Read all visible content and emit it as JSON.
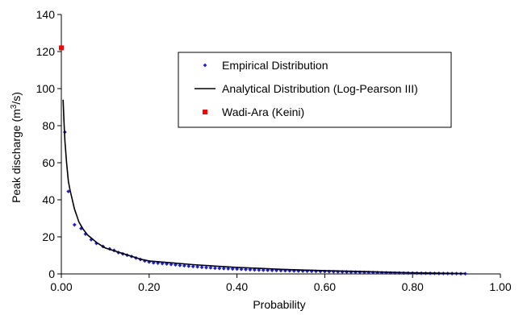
{
  "chart_data": {
    "type": "scatter",
    "xlabel": "Probability",
    "ylabel": {
      "prefix": "Peak discharge (m",
      "superscript": "3",
      "suffix": "/s)"
    },
    "xlim": [
      0,
      1
    ],
    "ylim": [
      0,
      140
    ],
    "x_ticks": [
      "0.00",
      "0.20",
      "0.40",
      "0.60",
      "0.80",
      "1.00"
    ],
    "y_ticks": [
      "0",
      "20",
      "40",
      "60",
      "80",
      "100",
      "120",
      "140"
    ],
    "grid": false,
    "legend_position": "top-right",
    "series": [
      {
        "name": "Empirical Distribution",
        "kind": "markers",
        "marker": "diamond",
        "color": "#1f1fd6",
        "points": [
          [
            0.008,
            76.5
          ],
          [
            0.016,
            44.5
          ],
          [
            0.03,
            26.5
          ],
          [
            0.045,
            24.5
          ],
          [
            0.055,
            21.5
          ],
          [
            0.068,
            18.5
          ],
          [
            0.08,
            16.5
          ],
          [
            0.095,
            14.8
          ],
          [
            0.11,
            13.5
          ],
          [
            0.12,
            12.7
          ],
          [
            0.13,
            11.5
          ],
          [
            0.14,
            10.8
          ],
          [
            0.15,
            10.1
          ],
          [
            0.16,
            9.4
          ],
          [
            0.17,
            8.6
          ],
          [
            0.18,
            7.8
          ],
          [
            0.19,
            7.0
          ],
          [
            0.2,
            6.4
          ],
          [
            0.21,
            6.0
          ],
          [
            0.22,
            5.8
          ],
          [
            0.23,
            5.6
          ],
          [
            0.24,
            5.4
          ],
          [
            0.25,
            5.1
          ],
          [
            0.26,
            4.9
          ],
          [
            0.27,
            4.6
          ],
          [
            0.28,
            4.4
          ],
          [
            0.29,
            4.2
          ],
          [
            0.3,
            4.0
          ],
          [
            0.31,
            3.8
          ],
          [
            0.32,
            3.6
          ],
          [
            0.33,
            3.4
          ],
          [
            0.34,
            3.3
          ],
          [
            0.35,
            3.1
          ],
          [
            0.36,
            3.0
          ],
          [
            0.37,
            2.9
          ],
          [
            0.38,
            2.8
          ],
          [
            0.39,
            2.7
          ],
          [
            0.4,
            2.6
          ],
          [
            0.41,
            2.5
          ],
          [
            0.42,
            2.4
          ],
          [
            0.43,
            2.3
          ],
          [
            0.44,
            2.2
          ],
          [
            0.45,
            2.1
          ],
          [
            0.46,
            2.0
          ],
          [
            0.47,
            1.95
          ],
          [
            0.48,
            1.9
          ],
          [
            0.49,
            1.85
          ],
          [
            0.5,
            1.8
          ],
          [
            0.51,
            1.75
          ],
          [
            0.52,
            1.7
          ],
          [
            0.53,
            1.65
          ],
          [
            0.54,
            1.6
          ],
          [
            0.55,
            1.55
          ],
          [
            0.56,
            1.5
          ],
          [
            0.57,
            1.45
          ],
          [
            0.58,
            1.4
          ],
          [
            0.59,
            1.35
          ],
          [
            0.6,
            1.3
          ],
          [
            0.61,
            1.25
          ],
          [
            0.62,
            1.2
          ],
          [
            0.63,
            1.15
          ],
          [
            0.64,
            1.1
          ],
          [
            0.65,
            1.05
          ],
          [
            0.66,
            1.0
          ],
          [
            0.67,
            0.95
          ],
          [
            0.68,
            0.9
          ],
          [
            0.69,
            0.85
          ],
          [
            0.7,
            0.8
          ],
          [
            0.71,
            0.75
          ],
          [
            0.72,
            0.7
          ],
          [
            0.73,
            0.65
          ],
          [
            0.74,
            0.6
          ],
          [
            0.75,
            0.55
          ],
          [
            0.76,
            0.5
          ],
          [
            0.77,
            0.48
          ],
          [
            0.78,
            0.45
          ],
          [
            0.79,
            0.42
          ],
          [
            0.8,
            0.4
          ],
          [
            0.81,
            0.38
          ],
          [
            0.82,
            0.35
          ],
          [
            0.83,
            0.32
          ],
          [
            0.84,
            0.3
          ],
          [
            0.85,
            0.28
          ],
          [
            0.86,
            0.25
          ],
          [
            0.87,
            0.22
          ],
          [
            0.88,
            0.2
          ],
          [
            0.89,
            0.18
          ],
          [
            0.9,
            0.15
          ],
          [
            0.91,
            0.12
          ],
          [
            0.92,
            0.1
          ]
        ]
      },
      {
        "name": "Analytical Distribution (Log-Pearson III)",
        "kind": "line",
        "color": "#000000",
        "points": [
          [
            0.004,
            94
          ],
          [
            0.006,
            82
          ],
          [
            0.008,
            72
          ],
          [
            0.012,
            60
          ],
          [
            0.016,
            50
          ],
          [
            0.02,
            45
          ],
          [
            0.025,
            40
          ],
          [
            0.03,
            35
          ],
          [
            0.04,
            28
          ],
          [
            0.05,
            24
          ],
          [
            0.06,
            21
          ],
          [
            0.07,
            19
          ],
          [
            0.08,
            17
          ],
          [
            0.09,
            15.5
          ],
          [
            0.1,
            14
          ],
          [
            0.12,
            12.5
          ],
          [
            0.14,
            11
          ],
          [
            0.16,
            9.5
          ],
          [
            0.18,
            8
          ],
          [
            0.2,
            7
          ],
          [
            0.25,
            6
          ],
          [
            0.3,
            5
          ],
          [
            0.35,
            4.2
          ],
          [
            0.4,
            3.5
          ],
          [
            0.45,
            3
          ],
          [
            0.5,
            2.5
          ],
          [
            0.55,
            2.1
          ],
          [
            0.6,
            1.8
          ],
          [
            0.65,
            1.5
          ],
          [
            0.7,
            1.2
          ],
          [
            0.75,
            0.9
          ],
          [
            0.8,
            0.6
          ],
          [
            0.85,
            0.4
          ],
          [
            0.92,
            0.2
          ]
        ]
      },
      {
        "name": "Wadi-Ara (Keini)",
        "kind": "markers",
        "marker": "square",
        "color": "#ff0000",
        "points": [
          [
            0.0,
            122
          ]
        ]
      }
    ]
  }
}
